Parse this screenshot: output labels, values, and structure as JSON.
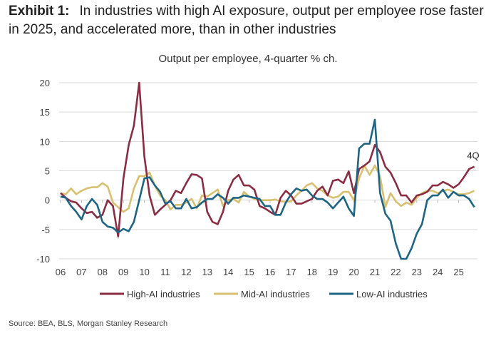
{
  "header": {
    "exhibit_label": "Exhibit 1:",
    "title": "In industries with high AI exposure, output per employee rose faster in 2025, and accelerated more, than in other industries"
  },
  "source": "Source: BEA, BLS, Morgan Stanley Research",
  "chart_data": {
    "type": "line",
    "title": "Output per employee, 4-quarter % ch.",
    "xlabel": "",
    "ylabel": "",
    "frequency": "quarterly",
    "x_start": "2006Q1",
    "x_end": "2025Q4",
    "x_tick_labels": [
      "06",
      "07",
      "08",
      "09",
      "10",
      "11",
      "12",
      "13",
      "14",
      "15",
      "16",
      "17",
      "18",
      "19",
      "20",
      "21",
      "22",
      "23",
      "24",
      "25"
    ],
    "y_ticks": [
      20,
      15,
      10,
      5,
      0,
      -5,
      -10
    ],
    "ylim": [
      -10,
      20
    ],
    "grid": "horizontal",
    "legend_position": "bottom",
    "annotation": "4Q",
    "series": [
      {
        "name": "High-AI industries",
        "color": "#8b2c42",
        "values": [
          1.2,
          0.4,
          -0.2,
          -0.4,
          -1.4,
          -2.2,
          -2,
          -3,
          -2.5,
          0,
          -1,
          -6.2,
          3.7,
          9.4,
          12.7,
          20,
          7.4,
          0.8,
          -2.5,
          -1.6,
          -0.8,
          0,
          1.6,
          1.2,
          2.9,
          4.4,
          4.3,
          3.7,
          -2,
          -3.7,
          -4.1,
          -2,
          1.6,
          3.5,
          4.3,
          2.5,
          2.5,
          1.8,
          -1,
          -1.4,
          -2,
          -2.5,
          0.4,
          1.6,
          0.8,
          -0.6,
          -0.6,
          -0.2,
          0.2,
          1.6,
          2.3,
          0.8,
          3.3,
          3.5,
          2.9,
          4.9,
          1.2,
          5.3,
          5.9,
          6.6,
          9.4,
          8.2,
          5.7,
          4.7,
          2.9,
          0.8,
          0.8,
          -0.4,
          0.8,
          1,
          1.4,
          2.5,
          2.5,
          3.1,
          2.7,
          2.1,
          2.7,
          3.9,
          5.3,
          5.7
        ]
      },
      {
        "name": "Mid-AI industries",
        "color": "#d8c070",
        "values": [
          1.2,
          1,
          2,
          1,
          1.6,
          2,
          2.2,
          2.2,
          2.9,
          2.3,
          -0.4,
          -1.2,
          -2,
          -1.4,
          2,
          4.1,
          4.1,
          4.7,
          2.5,
          0.8,
          0,
          -1.6,
          -0.8,
          -0.8,
          -0.4,
          0.2,
          -1.4,
          0.8,
          0.6,
          1.2,
          1.8,
          -1,
          0,
          0.2,
          -0.4,
          1.4,
          0.6,
          0.2,
          0,
          0,
          0,
          0.1,
          -0.2,
          -0.3,
          -0.2,
          0.8,
          1.6,
          2.5,
          2.9,
          2,
          1.6,
          0.8,
          0.4,
          0.6,
          1.4,
          1.4,
          0,
          3.7,
          5.9,
          4.3,
          5.9,
          4.1,
          -1.2,
          1.2,
          -0.2,
          -1,
          -0.4,
          -0.8,
          0.4,
          1.2,
          1.6,
          1.6,
          1.2,
          1.6,
          1.8,
          1.4,
          1,
          1,
          1.2,
          1.6
        ]
      },
      {
        "name": "Low-AI industries",
        "color": "#1d6584",
        "values": [
          0.6,
          0.4,
          -1,
          -2,
          -3.3,
          -1,
          0.2,
          -0.8,
          -3.7,
          -4.5,
          -4.7,
          -5.5,
          -4.9,
          -5.3,
          -3.7,
          0,
          3.7,
          3.9,
          2.5,
          1.4,
          -0.6,
          -0.2,
          -1.4,
          -1.4,
          0.2,
          -1.4,
          -1.2,
          -0.4,
          0.2,
          0.2,
          1,
          0.4,
          -0.6,
          0.4,
          0.4,
          0.8,
          0.6,
          0.4,
          0.2,
          -1,
          -1,
          -2.5,
          -2.5,
          -0.4,
          1,
          2,
          1.6,
          1.8,
          0.8,
          0.2,
          0.2,
          -0.4,
          -1.4,
          -0.4,
          0.6,
          -1.4,
          -2.7,
          8.8,
          9.6,
          9.6,
          13.7,
          1.2,
          -2.3,
          -3.5,
          -7.4,
          -10,
          -10,
          -8.2,
          -5.7,
          -4.1,
          0,
          0.8,
          0.8,
          1.8,
          0.4,
          1.4,
          0.8,
          0.8,
          0.2,
          -1.2
        ]
      }
    ]
  }
}
